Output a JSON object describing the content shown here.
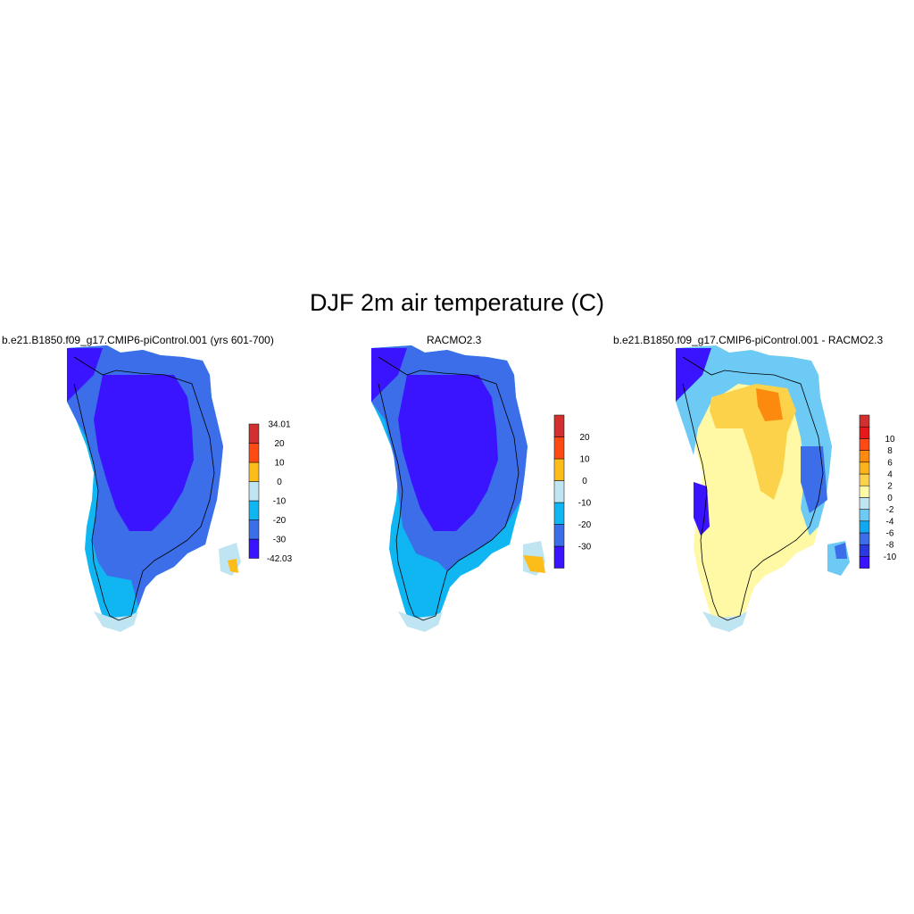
{
  "title": "DJF 2m air temperature (C)",
  "panels": [
    {
      "id": "model",
      "title": "b.e21.B1850.f09_g17.CMIP6-piControl.001 (yrs 601-700)",
      "colorbar": {
        "colors": [
          "#3a14ff",
          "#3b6ee8",
          "#10b6f2",
          "#bfe4f2",
          "#fcbc1a",
          "#ff4a14",
          "#d2302e"
        ],
        "labels": [
          "-42.03",
          "-30",
          "-20",
          "-10",
          "0",
          "10",
          "20",
          "34.01"
        ]
      }
    },
    {
      "id": "racmo",
      "title": "RACMO2.3",
      "colorbar": {
        "colors": [
          "#3a14ff",
          "#3b6ee8",
          "#10b6f2",
          "#bfe4f2",
          "#fcbc1a",
          "#ff4a14",
          "#d2302e"
        ],
        "labels": [
          "-30",
          "-20",
          "-10",
          "0",
          "10",
          "20"
        ]
      }
    },
    {
      "id": "difference",
      "title": "b.e21.B1850.f09_g17.CMIP6-piControl.001 - RACMO2.3",
      "colorbar": {
        "colors": [
          "#3a14ff",
          "#2a3ae0",
          "#3b6ee8",
          "#10a8f0",
          "#6ccaf5",
          "#bfe4f2",
          "#fff9a6",
          "#fcd24a",
          "#fcb41a",
          "#fc8a0e",
          "#ff4a14",
          "#e8181a",
          "#d2302e"
        ],
        "labels": [
          "-10",
          "-8",
          "-6",
          "-4",
          "-2",
          "0",
          "2",
          "4",
          "6",
          "8",
          "10"
        ]
      }
    }
  ]
}
